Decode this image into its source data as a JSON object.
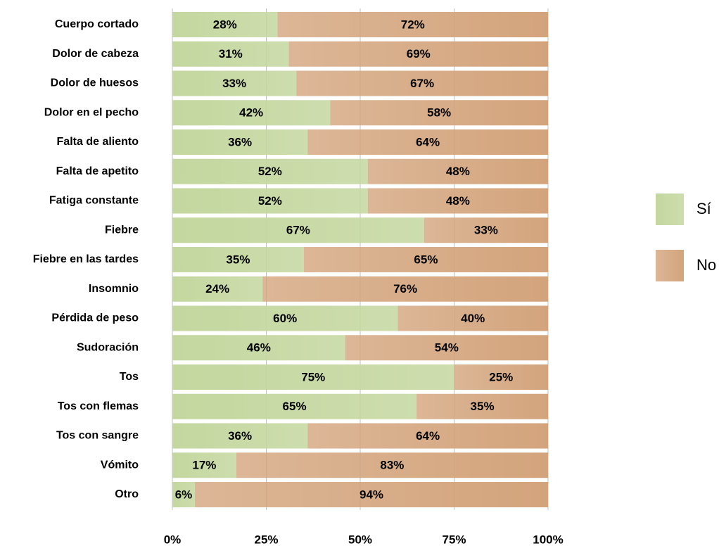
{
  "chart_data": {
    "type": "stacked_bar_horizontal",
    "categories": [
      "Cuerpo cortado",
      "Dolor de cabeza",
      "Dolor de huesos",
      "Dolor en el pecho",
      "Falta de aliento",
      "Falta de apetito",
      "Fatiga constante",
      "Fiebre",
      "Fiebre en las tardes",
      "Insomnio",
      "Pérdida de peso",
      "Sudoración",
      "Tos",
      "Tos con flemas",
      "Tos con sangre",
      "Vómito",
      "Otro"
    ],
    "series": [
      {
        "name": "Sí",
        "color": "#c4d79f",
        "values": [
          28,
          31,
          33,
          42,
          36,
          52,
          52,
          67,
          35,
          24,
          60,
          46,
          75,
          65,
          36,
          17,
          6
        ],
        "value_labels": [
          "28%",
          "31%",
          "33%",
          "42%",
          "36%",
          "52%",
          "52%",
          "67%",
          "35%",
          "24%",
          "60%",
          "46%",
          "75%",
          "65%",
          "36%",
          "17%",
          "6%"
        ]
      },
      {
        "name": "No",
        "color": "#d3a47c",
        "values": [
          72,
          69,
          67,
          58,
          64,
          48,
          48,
          33,
          65,
          76,
          40,
          54,
          25,
          35,
          64,
          83,
          94
        ],
        "value_labels": [
          "72%",
          "69%",
          "67%",
          "58%",
          "64%",
          "48%",
          "48%",
          "33%",
          "65%",
          "76%",
          "40%",
          "54%",
          "25%",
          "35%",
          "64%",
          "83%",
          "94%"
        ]
      }
    ],
    "xlim": [
      0,
      100
    ],
    "xticks": [
      {
        "value": 0,
        "label": "0%"
      },
      {
        "value": 25,
        "label": "25%"
      },
      {
        "value": 50,
        "label": "50%"
      },
      {
        "value": 75,
        "label": "75%"
      },
      {
        "value": 100,
        "label": "100%"
      }
    ],
    "grid": true,
    "legend": "right"
  }
}
